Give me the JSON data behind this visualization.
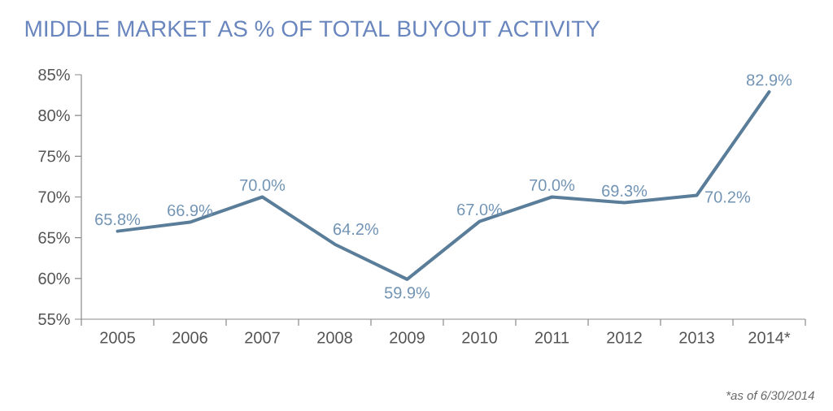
{
  "chart_data": {
    "type": "line",
    "title": "MIDDLE MARKET AS % OF TOTAL BUYOUT ACTIVITY",
    "categories": [
      "2005",
      "2006",
      "2007",
      "2008",
      "2009",
      "2010",
      "2011",
      "2012",
      "2013",
      "2014*"
    ],
    "values": [
      65.8,
      66.9,
      70.0,
      64.2,
      59.9,
      67.0,
      70.0,
      69.3,
      70.2,
      82.9
    ],
    "value_labels": [
      "65.8%",
      "66.9%",
      "70.0%",
      "64.2%",
      "59.9%",
      "67.0%",
      "70.0%",
      "69.3%",
      "70.2%",
      "82.9%"
    ],
    "color": "#5a7d9a",
    "ylim": [
      55,
      85
    ],
    "yticks": [
      {
        "value": 55,
        "label": "55%"
      },
      {
        "value": 60,
        "label": "60%"
      },
      {
        "value": 65,
        "label": "65%"
      },
      {
        "value": 70,
        "label": "70%"
      },
      {
        "value": 75,
        "label": "75%"
      },
      {
        "value": 80,
        "label": "80%"
      },
      {
        "value": 85,
        "label": "85%"
      }
    ],
    "annotations": [
      "*as of 6/30/2014"
    ]
  }
}
